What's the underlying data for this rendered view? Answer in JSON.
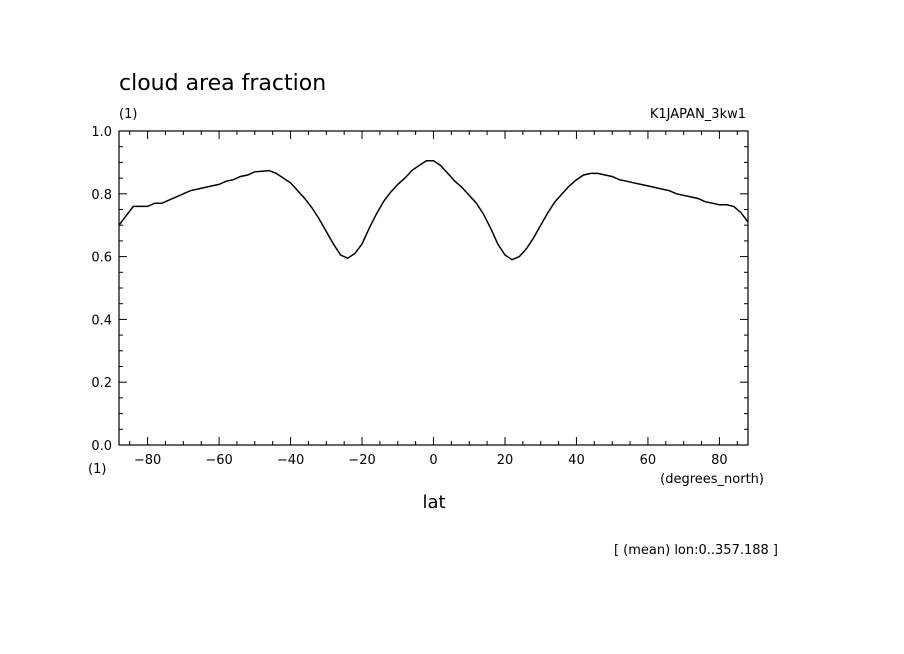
{
  "chart_data": {
    "type": "line",
    "title": "cloud area fraction",
    "y_unit": "(1)",
    "y_unit_bottom": "(1)",
    "dataset_label": "K1JAPAN_3kw1",
    "xlabel": "lat",
    "x_unit": "(degrees_north)",
    "footer_note": "[ (mean) lon:0..357.188 ]",
    "xlim": [
      -88,
      88
    ],
    "ylim": [
      0.0,
      1.0
    ],
    "x_ticks": [
      -80,
      -60,
      -40,
      -20,
      0,
      20,
      40,
      60,
      80
    ],
    "x_tick_labels": [
      "−80",
      "−60",
      "−40",
      "−20",
      "0",
      "20",
      "40",
      "60",
      "80"
    ],
    "y_ticks": [
      0.0,
      0.2,
      0.4,
      0.6,
      0.8,
      1.0
    ],
    "y_tick_labels": [
      "0.0",
      "0.2",
      "0.4",
      "0.6",
      "0.8",
      "1.0"
    ],
    "grid": false,
    "line_color": "#000000",
    "series": [
      {
        "x": [
          -88,
          -86,
          -84,
          -82,
          -80,
          -78,
          -76,
          -74,
          -72,
          -70,
          -68,
          -66,
          -64,
          -62,
          -60,
          -58,
          -56,
          -54,
          -52,
          -50,
          -48,
          -46,
          -44,
          -42,
          -40,
          -38,
          -36,
          -34,
          -32,
          -30,
          -28,
          -26,
          -24,
          -22,
          -20,
          -18,
          -16,
          -14,
          -12,
          -10,
          -8,
          -6,
          -4,
          -2,
          0,
          2,
          4,
          6,
          8,
          10,
          12,
          14,
          16,
          18,
          20,
          22,
          24,
          26,
          28,
          30,
          32,
          34,
          36,
          38,
          40,
          42,
          44,
          46,
          48,
          50,
          52,
          54,
          56,
          58,
          60,
          62,
          64,
          66,
          68,
          70,
          72,
          74,
          76,
          78,
          80,
          82,
          84,
          86,
          88
        ],
        "y": [
          0.7,
          0.73,
          0.76,
          0.76,
          0.76,
          0.77,
          0.77,
          0.78,
          0.79,
          0.8,
          0.81,
          0.815,
          0.82,
          0.825,
          0.83,
          0.84,
          0.845,
          0.855,
          0.86,
          0.87,
          0.872,
          0.874,
          0.865,
          0.85,
          0.835,
          0.81,
          0.785,
          0.755,
          0.72,
          0.68,
          0.64,
          0.605,
          0.595,
          0.61,
          0.64,
          0.69,
          0.735,
          0.775,
          0.805,
          0.83,
          0.85,
          0.875,
          0.89,
          0.905,
          0.905,
          0.89,
          0.865,
          0.84,
          0.82,
          0.795,
          0.77,
          0.735,
          0.69,
          0.64,
          0.605,
          0.59,
          0.6,
          0.625,
          0.66,
          0.7,
          0.74,
          0.775,
          0.8,
          0.825,
          0.845,
          0.86,
          0.865,
          0.865,
          0.86,
          0.855,
          0.845,
          0.84,
          0.835,
          0.83,
          0.825,
          0.82,
          0.815,
          0.81,
          0.8,
          0.795,
          0.79,
          0.785,
          0.775,
          0.77,
          0.765,
          0.765,
          0.76,
          0.74,
          0.71
        ]
      }
    ]
  }
}
